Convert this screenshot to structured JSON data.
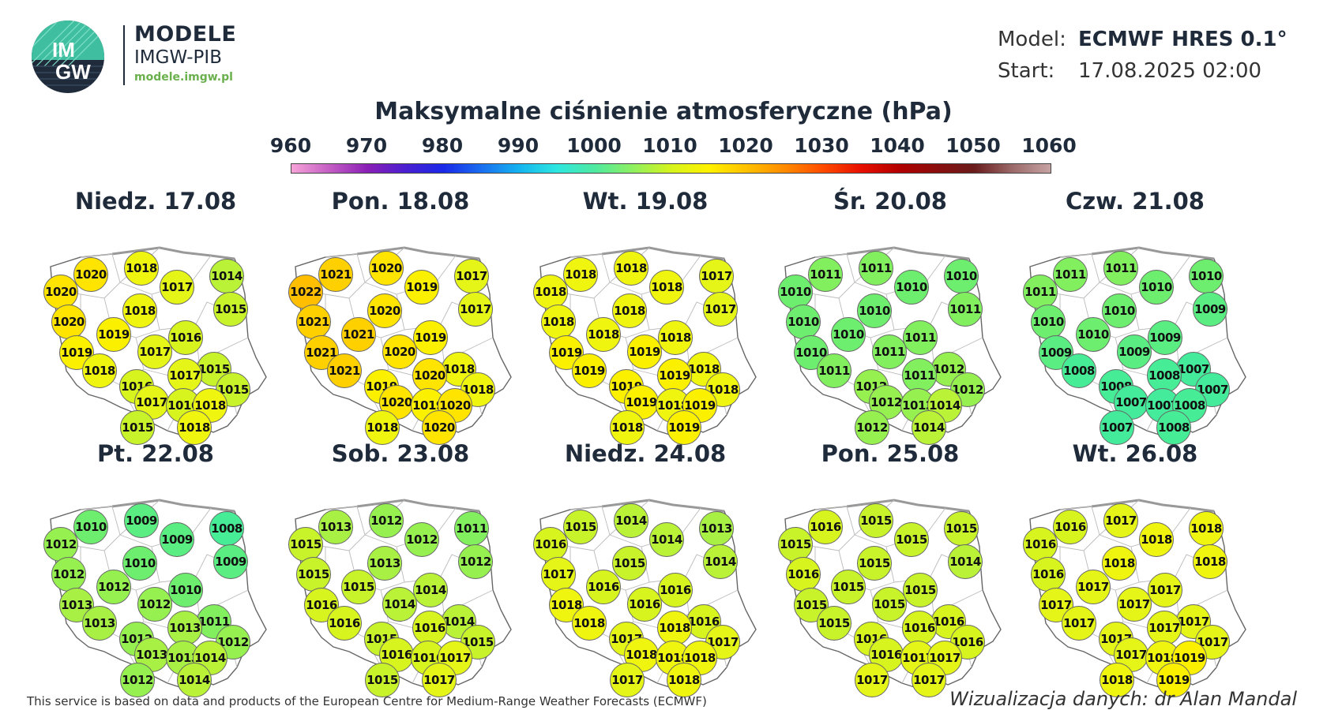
{
  "brand": {
    "logo_text_top": "IM",
    "logo_text_bottom": "GW",
    "name": "MODELE",
    "sub": "IMGW-PIB",
    "url": "modele.imgw.pl"
  },
  "meta": {
    "model_key": "Model:",
    "model_value": "ECMWF HRES 0.1°",
    "start_key": "Start:",
    "start_value": "17.08.2025 02:00"
  },
  "title": "Maksymalne ciśnienie atmosferyczne (hPa)",
  "colorbar": {
    "ticks": [
      "960",
      "970",
      "980",
      "990",
      "1000",
      "1010",
      "1020",
      "1030",
      "1040",
      "1050",
      "1060"
    ],
    "min": 960,
    "max": 1060
  },
  "days": [
    {
      "label": "Niedz. 17.08",
      "values": [
        1020,
        1018,
        1014,
        1020,
        1017,
        1015,
        1020,
        1018,
        1019,
        1016,
        1019,
        1017,
        1015,
        1018,
        1017,
        1016,
        1015,
        1017,
        1016,
        1018,
        1015,
        1018
      ]
    },
    {
      "label": "Pon. 18.08",
      "values": [
        1021,
        1020,
        1017,
        1022,
        1019,
        1017,
        1021,
        1020,
        1021,
        1019,
        1021,
        1020,
        1018,
        1021,
        1020,
        1019,
        1018,
        1020,
        1019,
        1020,
        1018,
        1020
      ]
    },
    {
      "label": "Wt. 19.08",
      "values": [
        1018,
        1018,
        1017,
        1018,
        1018,
        1017,
        1018,
        1018,
        1018,
        1018,
        1019,
        1019,
        1018,
        1019,
        1019,
        1019,
        1018,
        1019,
        1018,
        1019,
        1018,
        1019
      ]
    },
    {
      "label": "Śr. 20.08",
      "values": [
        1011,
        1011,
        1010,
        1010,
        1010,
        1011,
        1010,
        1010,
        1010,
        1011,
        1010,
        1011,
        1012,
        1011,
        1011,
        1012,
        1012,
        1012,
        1012,
        1014,
        1012,
        1014
      ]
    },
    {
      "label": "Czw. 21.08",
      "values": [
        1011,
        1011,
        1010,
        1011,
        1010,
        1009,
        1010,
        1010,
        1010,
        1009,
        1009,
        1009,
        1007,
        1008,
        1008,
        1008,
        1007,
        1007,
        1007,
        1008,
        1007,
        1008
      ]
    },
    {
      "label": "Pt. 22.08",
      "values": [
        1010,
        1009,
        1008,
        1012,
        1009,
        1009,
        1012,
        1010,
        1012,
        1010,
        1013,
        1012,
        1011,
        1013,
        1013,
        1012,
        1012,
        1013,
        1013,
        1014,
        1012,
        1014
      ]
    },
    {
      "label": "Sob. 23.08",
      "values": [
        1013,
        1012,
        1011,
        1015,
        1012,
        1012,
        1015,
        1013,
        1015,
        1014,
        1016,
        1014,
        1014,
        1016,
        1016,
        1015,
        1015,
        1016,
        1016,
        1017,
        1015,
        1017
      ]
    },
    {
      "label": "Niedz. 24.08",
      "values": [
        1015,
        1014,
        1013,
        1016,
        1014,
        1014,
        1017,
        1015,
        1016,
        1016,
        1018,
        1016,
        1016,
        1018,
        1018,
        1017,
        1017,
        1018,
        1018,
        1018,
        1017,
        1018
      ]
    },
    {
      "label": "Pon. 25.08",
      "values": [
        1016,
        1015,
        1015,
        1015,
        1015,
        1014,
        1016,
        1015,
        1015,
        1015,
        1015,
        1015,
        1016,
        1015,
        1016,
        1016,
        1016,
        1016,
        1017,
        1017,
        1017,
        1017
      ]
    },
    {
      "label": "Wt. 26.08",
      "values": [
        1016,
        1017,
        1018,
        1016,
        1018,
        1018,
        1016,
        1018,
        1017,
        1017,
        1017,
        1017,
        1017,
        1017,
        1017,
        1017,
        1017,
        1017,
        1018,
        1019,
        1018,
        1019
      ]
    }
  ],
  "footer": {
    "left": "This service is based on data and products of the European Centre for Medium-Range Weather Forecasts (ECMWF)",
    "right": "Wizualizacja danych: dr Alan Mandal"
  }
}
